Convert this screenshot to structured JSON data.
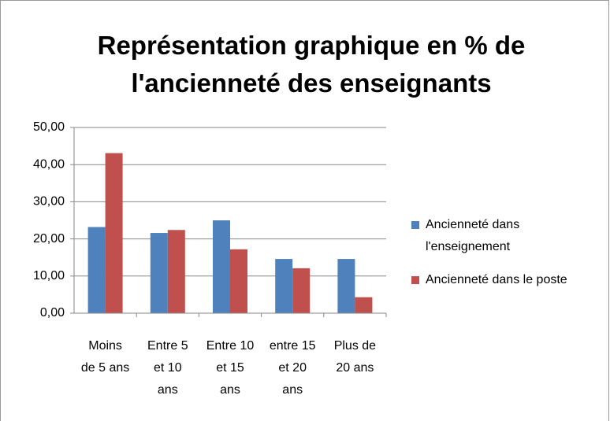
{
  "chart_data": {
    "type": "bar",
    "title": "Représentation graphique en % de\nl'ancienneté des enseignants",
    "categories": [
      "Moins\nde 5 ans",
      "Entre 5\net 10\nans",
      "Entre 10\net 15\nans",
      "entre 15\net 20\nans",
      "Plus de\n20 ans"
    ],
    "series": [
      {
        "name": "Ancienneté dans\nl'enseignement",
        "color": "#4f81bd",
        "values": [
          23.2,
          21.6,
          25.0,
          14.6,
          14.6
        ]
      },
      {
        "name": "Ancienneté dans le poste",
        "color": "#c0504d",
        "values": [
          43.1,
          22.4,
          17.2,
          12.1,
          4.3
        ]
      }
    ],
    "ylim": [
      0,
      50
    ],
    "yticks": [
      {
        "value": 0,
        "label": "0,00"
      },
      {
        "value": 10,
        "label": "10,00"
      },
      {
        "value": 20,
        "label": "20,00"
      },
      {
        "value": 30,
        "label": "30,00"
      },
      {
        "value": 40,
        "label": "40,00"
      },
      {
        "value": 50,
        "label": "50,00"
      }
    ],
    "grid": true,
    "legend": "right"
  }
}
